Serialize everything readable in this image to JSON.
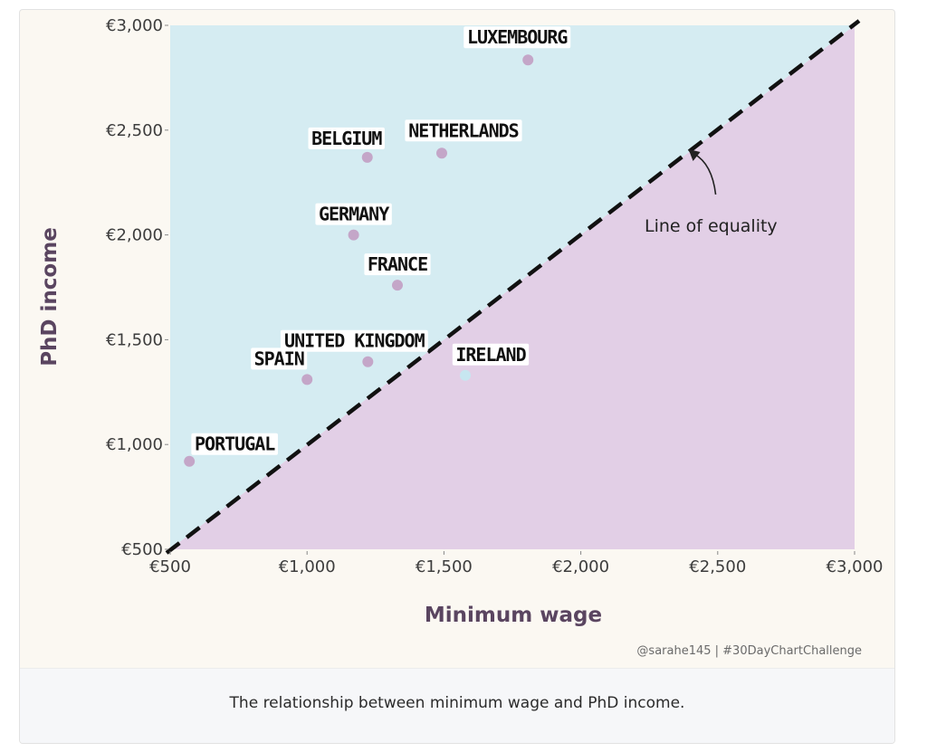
{
  "chart_data": {
    "type": "scatter",
    "title": "",
    "xlabel": "Minimum wage",
    "ylabel": "PhD income",
    "xlim": [
      500,
      3000
    ],
    "ylim": [
      500,
      3000
    ],
    "x_ticks": [
      "€500",
      "€1,000",
      "€1,500",
      "€2,000",
      "€2,500",
      "€3,000"
    ],
    "y_ticks": [
      "€500",
      "€1,000",
      "€1,500",
      "€2,000",
      "€2,500",
      "€3,000"
    ],
    "x_tick_values": [
      500,
      1000,
      1500,
      2000,
      2500,
      3000
    ],
    "y_tick_values": [
      500,
      1000,
      1500,
      2000,
      2500,
      3000
    ],
    "points": [
      {
        "label": "LUXEMBOURG",
        "x": 1807,
        "y": 2835,
        "color": "#c4a6c8"
      },
      {
        "label": "NETHERLANDS",
        "x": 1492,
        "y": 2390,
        "color": "#c4a6c8"
      },
      {
        "label": "BELGIUM",
        "x": 1220,
        "y": 2370,
        "color": "#c4a6c8"
      },
      {
        "label": "GERMANY",
        "x": 1170,
        "y": 2000,
        "color": "#c4a6c8"
      },
      {
        "label": "FRANCE",
        "x": 1330,
        "y": 1760,
        "color": "#c4a6c8"
      },
      {
        "label": "UNITED KINGDOM",
        "x": 1222,
        "y": 1395,
        "color": "#c4a6c8"
      },
      {
        "label": "IRELAND",
        "x": 1578,
        "y": 1330,
        "color": "#c7e6f0"
      },
      {
        "label": "SPAIN",
        "x": 1000,
        "y": 1310,
        "color": "#c4a6c8"
      },
      {
        "label": "PORTUGAL",
        "x": 570,
        "y": 920,
        "color": "#c4a6c8"
      }
    ],
    "reference_line": {
      "label": "Line of equality",
      "from": [
        500,
        500
      ],
      "to": [
        3000,
        3000
      ],
      "style": "dashed"
    },
    "colors": {
      "above_line": "#d5ecf2",
      "below_line": "#e2cfe6",
      "axis_title": "#5a4560",
      "background": "#fbf8f2"
    },
    "grid": false,
    "legend": "none"
  },
  "annotation": {
    "text": "Line of equality"
  },
  "credit": "@sarahe145 | #30DayChartChallenge",
  "caption": "The relationship between minimum wage and PhD income."
}
